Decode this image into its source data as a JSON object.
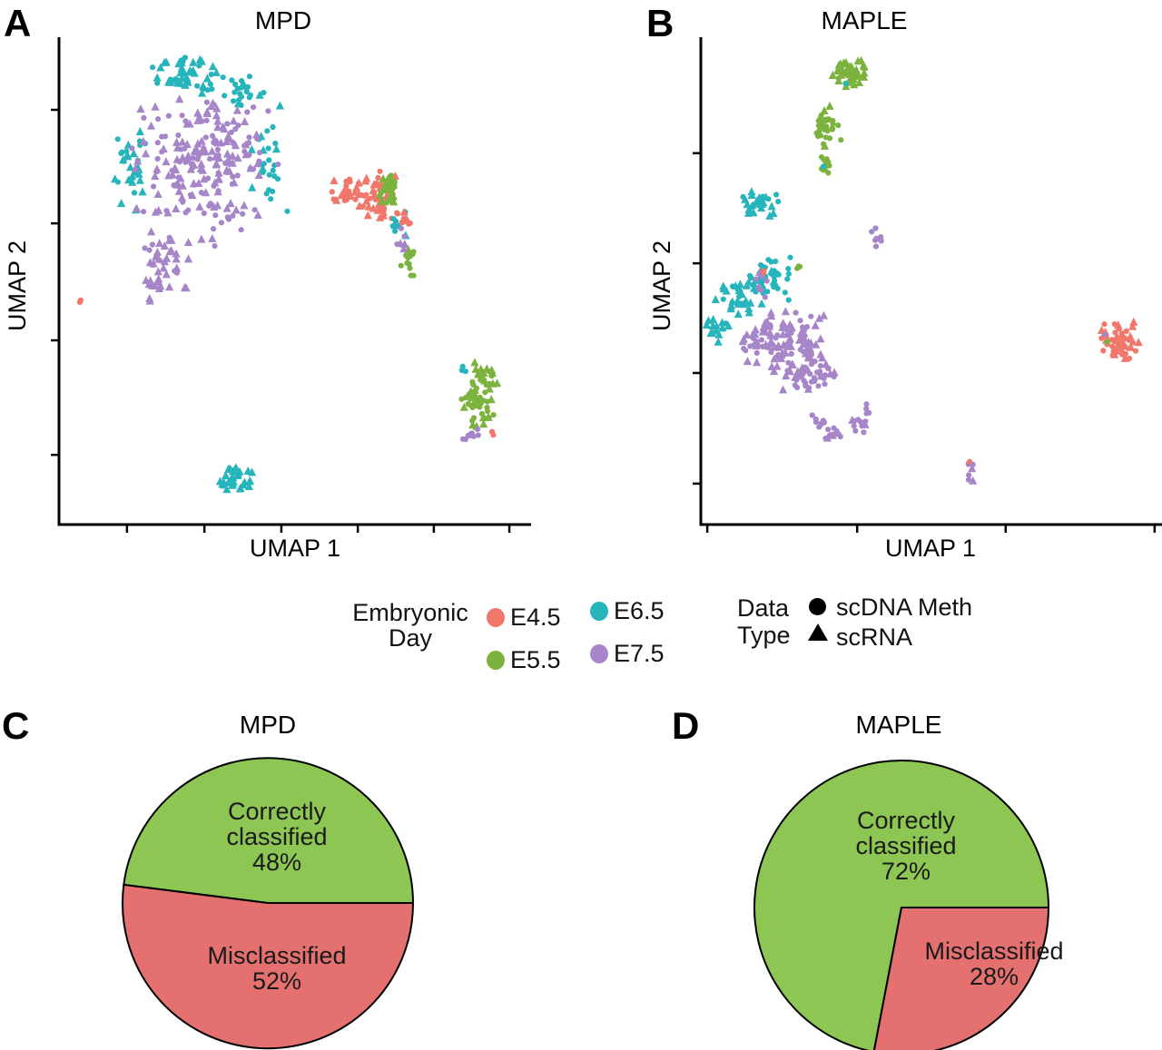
{
  "palette": {
    "E4.5": "#F1766B",
    "E5.5": "#7CB23E",
    "E6.5": "#27B5BC",
    "E7.5": "#A685C8"
  },
  "pie_colors": {
    "correct": "#8DC653",
    "mis": "#E57070"
  },
  "legend": {
    "embryonic_day": {
      "label_line1": "Embryonic",
      "label_line2": "Day",
      "items": [
        {
          "label": "E4.5",
          "color": "#F1766B"
        },
        {
          "label": "E5.5",
          "color": "#7CB23E"
        },
        {
          "label": "E6.5",
          "color": "#27B5BC"
        },
        {
          "label": "E7.5",
          "color": "#A685C8"
        }
      ]
    },
    "data_type": {
      "label_line1": "Data",
      "label_line2": "Type",
      "items": [
        {
          "label": "scDNA Meth",
          "marker": "circle"
        },
        {
          "label": "scRNA",
          "marker": "triangle"
        }
      ]
    }
  },
  "pies": [
    {
      "letter": "C",
      "title": "MPD",
      "green_lines": [
        "Correctly",
        "classified",
        "48%"
      ],
      "red_lines": [
        "Misclassified",
        "52%"
      ]
    },
    {
      "letter": "D",
      "title": "MAPLE",
      "green_lines": [
        "Correctly",
        "classified",
        "72%"
      ],
      "red_lines": [
        "Misclassified",
        "28%"
      ]
    }
  ],
  "chart_data": [
    {
      "type": "scatter",
      "id": "A",
      "letter": "A",
      "title": "MPD",
      "xlabel": "UMAP 1",
      "ylabel": "UMAP 2",
      "axis_tick_labels": "none (unlabeled UMAP axes)",
      "x_ticks": [
        0.144,
        0.308,
        0.471,
        0.633,
        0.794,
        0.954
      ],
      "y_ticks": [
        0.149,
        0.382,
        0.622,
        0.857
      ],
      "point_groups_legend": {
        "color": "Embryonic Day",
        "shape": "Data Type (circle=scDNA Meth, triangle=scRNA)"
      },
      "clusters": [
        {
          "x": 0.269,
          "y": 0.069,
          "sx": 0.054,
          "sy": 0.03,
          "n": 42,
          "day": "E6.5",
          "tri": 0.6
        },
        {
          "x": 0.365,
          "y": 0.11,
          "sx": 0.048,
          "sy": 0.034,
          "n": 30,
          "day": "E6.5",
          "tri": 0.15
        },
        {
          "x": 0.15,
          "y": 0.268,
          "sx": 0.027,
          "sy": 0.074,
          "n": 30,
          "day": "E6.5",
          "tri": 0.5
        },
        {
          "x": 0.433,
          "y": 0.259,
          "sx": 0.035,
          "sy": 0.084,
          "n": 26,
          "day": "E6.5",
          "tri": 0.15
        },
        {
          "x": 0.288,
          "y": 0.277,
          "sx": 0.106,
          "sy": 0.112,
          "n": 150,
          "day": "E7.5",
          "tri": 0.55
        },
        {
          "x": 0.356,
          "y": 0.222,
          "sx": 0.077,
          "sy": 0.065,
          "n": 60,
          "day": "E7.5",
          "tri": 0.5
        },
        {
          "x": 0.231,
          "y": 0.464,
          "sx": 0.035,
          "sy": 0.041,
          "n": 28,
          "day": "E7.5",
          "tri": 0.8
        },
        {
          "x": 0.202,
          "y": 0.516,
          "sx": 0.019,
          "sy": 0.019,
          "n": 10,
          "day": "E7.5",
          "tri": 1.0
        },
        {
          "x": 0.048,
          "y": 0.542,
          "sx": 0.006,
          "sy": 0.006,
          "n": 2,
          "day": "E4.5",
          "tri": 0
        },
        {
          "x": 0.629,
          "y": 0.318,
          "sx": 0.038,
          "sy": 0.024,
          "n": 40,
          "day": "E4.5",
          "tri": 0.5
        },
        {
          "x": 0.69,
          "y": 0.33,
          "sx": 0.027,
          "sy": 0.041,
          "n": 42,
          "day": "E4.5",
          "tri": 0.5
        },
        {
          "x": 0.698,
          "y": 0.309,
          "sx": 0.015,
          "sy": 0.028,
          "n": 34,
          "day": "E5.5",
          "tri": 0.5
        },
        {
          "x": 0.721,
          "y": 0.395,
          "sx": 0.012,
          "sy": 0.026,
          "n": 10,
          "day": "E6.5",
          "tri": 0.2
        },
        {
          "x": 0.74,
          "y": 0.464,
          "sx": 0.012,
          "sy": 0.037,
          "n": 12,
          "day": "E5.5",
          "tri": 0.1
        },
        {
          "x": 0.727,
          "y": 0.412,
          "sx": 0.01,
          "sy": 0.019,
          "n": 6,
          "day": "E7.5",
          "tri": 0.3
        },
        {
          "x": 0.733,
          "y": 0.376,
          "sx": 0.013,
          "sy": 0.015,
          "n": 8,
          "day": "E4.5",
          "tri": 0.3
        },
        {
          "x": 0.888,
          "y": 0.739,
          "sx": 0.025,
          "sy": 0.052,
          "n": 55,
          "day": "E5.5",
          "tri": 0.45
        },
        {
          "x": 0.898,
          "y": 0.691,
          "sx": 0.021,
          "sy": 0.019,
          "n": 15,
          "day": "E5.5",
          "tri": 0.4
        },
        {
          "x": 0.86,
          "y": 0.683,
          "sx": 0.01,
          "sy": 0.007,
          "n": 3,
          "day": "E6.5",
          "tri": 0
        },
        {
          "x": 0.875,
          "y": 0.817,
          "sx": 0.021,
          "sy": 0.013,
          "n": 10,
          "day": "E7.5",
          "tri": 0
        },
        {
          "x": 0.915,
          "y": 0.812,
          "sx": 0.006,
          "sy": 0.006,
          "n": 2,
          "day": "E4.5",
          "tri": 0
        },
        {
          "x": 0.371,
          "y": 0.907,
          "sx": 0.029,
          "sy": 0.024,
          "n": 32,
          "day": "E6.5",
          "tri": 0.95
        }
      ]
    },
    {
      "type": "scatter",
      "id": "B",
      "letter": "B",
      "title": "MAPLE",
      "xlabel": "UMAP 1",
      "ylabel": "UMAP 2",
      "axis_tick_labels": "none (unlabeled UMAP axes)",
      "x_ticks": [
        0.014,
        0.339,
        0.661,
        0.984
      ],
      "y_ticks": [
        0.238,
        0.464,
        0.689,
        0.916
      ],
      "point_groups_legend": {
        "color": "Embryonic Day",
        "shape": "Data Type (circle=scDNA Meth, triangle=scRNA)"
      },
      "clusters": [
        {
          "x": 0.327,
          "y": 0.073,
          "sx": 0.03,
          "sy": 0.024,
          "n": 45,
          "day": "E5.5",
          "tri": 0.9
        },
        {
          "x": 0.274,
          "y": 0.142,
          "sx": 0.012,
          "sy": 0.011,
          "n": 2,
          "day": "E5.5",
          "tri": 1.0
        },
        {
          "x": 0.272,
          "y": 0.19,
          "sx": 0.024,
          "sy": 0.026,
          "n": 28,
          "day": "E5.5",
          "tri": 0.1
        },
        {
          "x": 0.27,
          "y": 0.25,
          "sx": 0.01,
          "sy": 0.024,
          "n": 12,
          "day": "E5.5",
          "tri": 0.1
        },
        {
          "x": 0.315,
          "y": 0.095,
          "sx": 0.004,
          "sy": 0.004,
          "n": 1,
          "day": "E6.5",
          "tri": 0
        },
        {
          "x": 0.27,
          "y": 0.266,
          "sx": 0.004,
          "sy": 0.004,
          "n": 1,
          "day": "E6.5",
          "tri": 0
        },
        {
          "x": 0.13,
          "y": 0.337,
          "sx": 0.028,
          "sy": 0.026,
          "n": 30,
          "day": "E6.5",
          "tri": 0.85
        },
        {
          "x": 0.38,
          "y": 0.423,
          "sx": 0.008,
          "sy": 0.022,
          "n": 8,
          "day": "E7.5",
          "tri": 0.1
        },
        {
          "x": 0.15,
          "y": 0.486,
          "sx": 0.035,
          "sy": 0.041,
          "n": 40,
          "day": "E6.5",
          "tri": 0.15
        },
        {
          "x": 0.085,
          "y": 0.538,
          "sx": 0.039,
          "sy": 0.03,
          "n": 32,
          "day": "E6.5",
          "tri": 0.8
        },
        {
          "x": 0.134,
          "y": 0.505,
          "sx": 0.02,
          "sy": 0.022,
          "n": 8,
          "day": "E7.5",
          "tri": 0.2
        },
        {
          "x": 0.207,
          "y": 0.477,
          "sx": 0.008,
          "sy": 0.007,
          "n": 3,
          "day": "E5.5",
          "tri": 0
        },
        {
          "x": 0.035,
          "y": 0.598,
          "sx": 0.018,
          "sy": 0.02,
          "n": 14,
          "day": "E6.5",
          "tri": 0.9
        },
        {
          "x": 0.138,
          "y": 0.482,
          "sx": 0.005,
          "sy": 0.005,
          "n": 2,
          "day": "E4.5",
          "tri": 0
        },
        {
          "x": 0.189,
          "y": 0.627,
          "sx": 0.071,
          "sy": 0.048,
          "n": 110,
          "day": "E7.5",
          "tri": 0.6
        },
        {
          "x": 0.242,
          "y": 0.696,
          "sx": 0.047,
          "sy": 0.026,
          "n": 45,
          "day": "E7.5",
          "tri": 0.3
        },
        {
          "x": 0.256,
          "y": 0.788,
          "sx": 0.016,
          "sy": 0.011,
          "n": 8,
          "day": "E7.5",
          "tri": 0.1
        },
        {
          "x": 0.295,
          "y": 0.814,
          "sx": 0.02,
          "sy": 0.009,
          "n": 10,
          "day": "E7.5",
          "tri": 0.1
        },
        {
          "x": 0.341,
          "y": 0.795,
          "sx": 0.016,
          "sy": 0.015,
          "n": 10,
          "day": "E7.5",
          "tri": 0.2
        },
        {
          "x": 0.364,
          "y": 0.762,
          "sx": 0.008,
          "sy": 0.009,
          "n": 4,
          "day": "E7.5",
          "tri": 0
        },
        {
          "x": 0.907,
          "y": 0.624,
          "sx": 0.03,
          "sy": 0.032,
          "n": 55,
          "day": "E4.5",
          "tri": 0.45
        },
        {
          "x": 0.878,
          "y": 0.611,
          "sx": 0.004,
          "sy": 0.004,
          "n": 1,
          "day": "E7.5",
          "tri": 0
        },
        {
          "x": 0.884,
          "y": 0.629,
          "sx": 0.004,
          "sy": 0.004,
          "n": 1,
          "day": "E5.5",
          "tri": 0
        },
        {
          "x": 0.583,
          "y": 0.894,
          "sx": 0.008,
          "sy": 0.017,
          "n": 7,
          "day": "E7.5",
          "tri": 0.15
        },
        {
          "x": 0.581,
          "y": 0.875,
          "sx": 0.004,
          "sy": 0.004,
          "n": 1,
          "day": "E4.5",
          "tri": 0
        }
      ]
    },
    {
      "type": "pie",
      "id": "C",
      "letter": "C",
      "title": "MPD",
      "labels": [
        "Correctly classified",
        "Misclassified"
      ],
      "values": [
        48,
        52
      ],
      "colors": [
        "#8DC653",
        "#E57070"
      ],
      "start_angle_deg": 0,
      "direction": "counterclockwise"
    },
    {
      "type": "pie",
      "id": "D",
      "letter": "D",
      "title": "MAPLE",
      "labels": [
        "Correctly classified",
        "Misclassified"
      ],
      "values": [
        72,
        28
      ],
      "colors": [
        "#8DC653",
        "#E57070"
      ],
      "start_angle_deg": 0,
      "direction": "counterclockwise"
    }
  ]
}
